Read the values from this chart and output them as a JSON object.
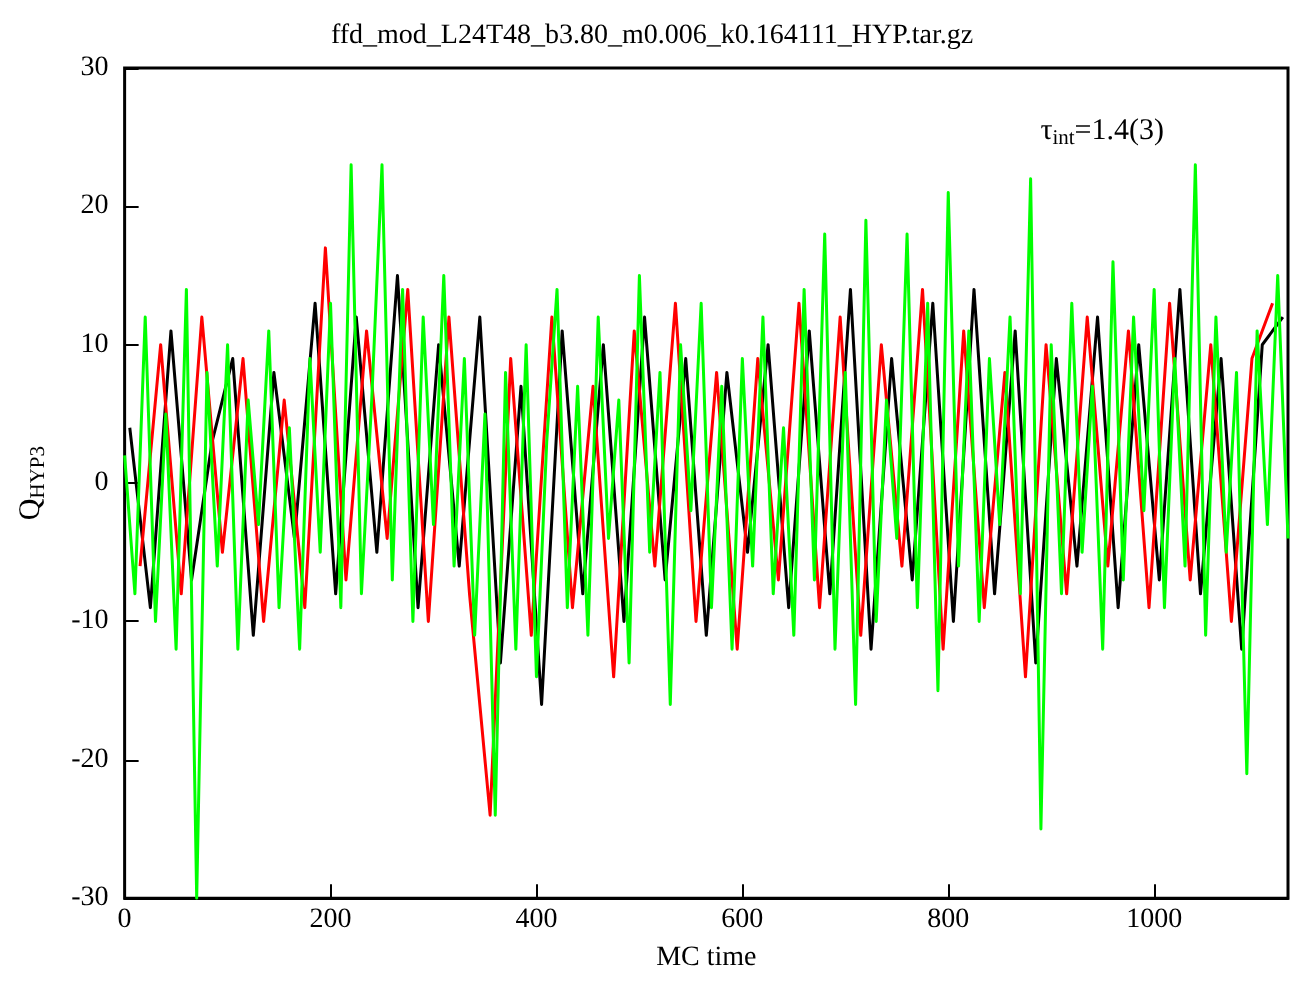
{
  "chart_data": {
    "type": "line",
    "title": "ffd_mod_L24T48_b3.80_m0.006_k0.164111_HYP.tar.gz",
    "xlabel": "MC time",
    "ylabel": "Q$_{HYP3}$",
    "annotations": [
      "τ$_{int}$=1.4(3)"
    ],
    "marker": "none",
    "xlim": [
      0,
      1130
    ],
    "xticks": [
      0,
      200,
      400,
      600,
      800,
      1000
    ],
    "ylim": [
      -30,
      30
    ],
    "yticks": [
      -30,
      -20,
      -10,
      0,
      10,
      20,
      30
    ],
    "series": [
      {
        "color": "#000000",
        "x": [
          5,
          25,
          45,
          65,
          85,
          105,
          125,
          145,
          165,
          185,
          205,
          225,
          245,
          265,
          285,
          305,
          325,
          345,
          365,
          385,
          405,
          425,
          445,
          465,
          485,
          505,
          525,
          545,
          565,
          585,
          605,
          625,
          645,
          665,
          685,
          705,
          725,
          745,
          765,
          785,
          805,
          825,
          845,
          865,
          885,
          905,
          925,
          945,
          965,
          985,
          1005,
          1025,
          1045,
          1065,
          1085,
          1105,
          1125
        ],
        "values": [
          4,
          -9,
          11,
          -7,
          3,
          9,
          -11,
          8,
          -4,
          13,
          -8,
          12,
          -5,
          15,
          -9,
          10,
          -6,
          12,
          -13,
          7,
          -16,
          11,
          -8,
          10,
          -10,
          12,
          -7,
          9,
          -11,
          8,
          -5,
          10,
          -9,
          11,
          -8,
          14,
          -12,
          9,
          -7,
          13,
          -10,
          14,
          -8,
          11,
          -13,
          9,
          -6,
          12,
          -9,
          10,
          -7,
          14,
          -8,
          9,
          -12,
          10,
          12
        ]
      },
      {
        "color": "#ff0000",
        "x": [
          15,
          35,
          55,
          75,
          95,
          115,
          135,
          155,
          175,
          195,
          215,
          235,
          255,
          275,
          295,
          315,
          335,
          355,
          375,
          395,
          415,
          435,
          455,
          475,
          495,
          515,
          535,
          555,
          575,
          595,
          615,
          635,
          655,
          675,
          695,
          715,
          735,
          755,
          775,
          795,
          815,
          835,
          855,
          875,
          895,
          915,
          935,
          955,
          975,
          995,
          1015,
          1035,
          1055,
          1075,
          1095,
          1115
        ],
        "values": [
          -6,
          10,
          -8,
          12,
          -5,
          9,
          -10,
          6,
          -9,
          17,
          -7,
          11,
          -4,
          14,
          -10,
          12,
          -8,
          -24,
          9,
          -11,
          12,
          -9,
          7,
          -14,
          11,
          -6,
          13,
          -10,
          8,
          -12,
          9,
          -7,
          13,
          -9,
          12,
          -11,
          10,
          -6,
          14,
          -12,
          11,
          -9,
          8,
          -14,
          10,
          -8,
          12,
          -6,
          11,
          -9,
          13,
          -7,
          10,
          -10,
          9,
          13
        ]
      },
      {
        "color": "#00ff00",
        "x": [
          0,
          10,
          20,
          30,
          40,
          50,
          60,
          70,
          80,
          90,
          100,
          110,
          120,
          130,
          140,
          150,
          160,
          170,
          180,
          190,
          200,
          210,
          220,
          230,
          240,
          250,
          260,
          270,
          280,
          290,
          300,
          310,
          320,
          330,
          340,
          350,
          360,
          370,
          380,
          390,
          400,
          410,
          420,
          430,
          440,
          450,
          460,
          470,
          480,
          490,
          500,
          510,
          520,
          530,
          540,
          550,
          560,
          570,
          580,
          590,
          600,
          610,
          620,
          630,
          640,
          650,
          660,
          670,
          680,
          690,
          700,
          710,
          720,
          730,
          740,
          750,
          760,
          770,
          780,
          790,
          800,
          810,
          820,
          830,
          840,
          850,
          860,
          870,
          880,
          890,
          900,
          910,
          920,
          930,
          940,
          950,
          960,
          970,
          980,
          990,
          1000,
          1010,
          1020,
          1030,
          1040,
          1050,
          1060,
          1070,
          1080,
          1090,
          1100,
          1110,
          1120,
          1130
        ],
        "values": [
          2,
          -8,
          12,
          -10,
          5,
          -12,
          14,
          -30,
          8,
          -6,
          10,
          -12,
          6,
          -3,
          11,
          -9,
          4,
          -12,
          9,
          -5,
          13,
          -9,
          23,
          -8,
          6,
          23,
          -7,
          14,
          -10,
          12,
          -3,
          15,
          -6,
          9,
          -11,
          5,
          -24,
          8,
          -12,
          10,
          -14,
          3,
          14,
          -9,
          7,
          -11,
          12,
          -4,
          6,
          -13,
          15,
          -5,
          8,
          -16,
          10,
          -2,
          13,
          -9,
          7,
          -12,
          9,
          -6,
          12,
          -8,
          4,
          -11,
          14,
          -7,
          18,
          -12,
          8,
          -16,
          19,
          -10,
          6,
          -4,
          18,
          -9,
          13,
          -15,
          21,
          -6,
          11,
          -10,
          9,
          -3,
          12,
          -8,
          22,
          -25,
          10,
          -8,
          13,
          -5,
          7,
          -12,
          16,
          -7,
          12,
          -2,
          14,
          -9,
          9,
          -6,
          23,
          -11,
          12,
          -5,
          8,
          -21,
          11,
          -3,
          15,
          -4
        ]
      }
    ]
  }
}
